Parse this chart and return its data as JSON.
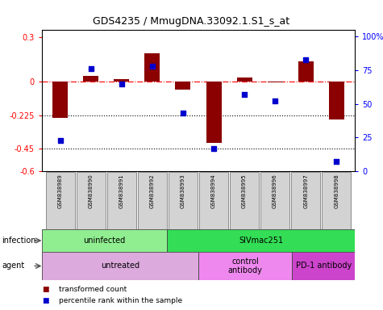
{
  "title": "GDS4235 / MmugDNA.33092.1.S1_s_at",
  "samples": [
    "GSM838989",
    "GSM838990",
    "GSM838991",
    "GSM838992",
    "GSM838993",
    "GSM838994",
    "GSM838995",
    "GSM838996",
    "GSM838997",
    "GSM838998"
  ],
  "bar_values": [
    -0.24,
    0.04,
    0.02,
    0.19,
    -0.05,
    -0.41,
    0.03,
    -0.005,
    0.14,
    -0.25
  ],
  "scatter_values": [
    23,
    76,
    65,
    78,
    43,
    17,
    57,
    52,
    83,
    7
  ],
  "bar_color": "#8B0000",
  "scatter_color": "#0000CD",
  "ylim_left": [
    -0.6,
    0.35
  ],
  "ylim_right": [
    0,
    105
  ],
  "yticks_left": [
    -0.6,
    -0.45,
    -0.225,
    0,
    0.3
  ],
  "yticks_right": [
    0,
    25,
    50,
    75,
    100
  ],
  "ytick_labels_left": [
    "-0.6",
    "-0.45",
    "-0.225",
    "0",
    "0.3"
  ],
  "ytick_labels_right": [
    "0",
    "25",
    "50",
    "75",
    "100%"
  ],
  "dotted_lines": [
    -0.225,
    -0.45
  ],
  "infection_groups": [
    {
      "label": "uninfected",
      "start": 0,
      "end": 4,
      "color": "#90EE90"
    },
    {
      "label": "SIVmac251",
      "start": 4,
      "end": 10,
      "color": "#33DD55"
    }
  ],
  "agent_groups": [
    {
      "label": "untreated",
      "start": 0,
      "end": 5,
      "color": "#DDAADD"
    },
    {
      "label": "control\nantibody",
      "start": 5,
      "end": 8,
      "color": "#EE88EE"
    },
    {
      "label": "PD-1 antibody",
      "start": 8,
      "end": 10,
      "color": "#CC44CC"
    }
  ],
  "legend_items": [
    {
      "label": "transformed count",
      "color": "#8B0000"
    },
    {
      "label": "percentile rank within the sample",
      "color": "#0000CD"
    }
  ],
  "background_color": "#FFFFFF",
  "bar_width": 0.5
}
